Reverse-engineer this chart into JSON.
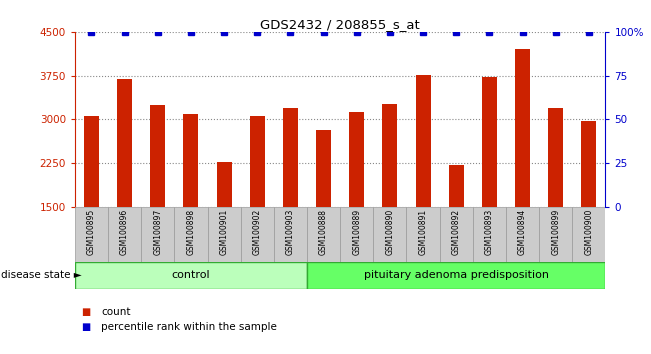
{
  "title": "GDS2432 / 208855_s_at",
  "samples": [
    "GSM100895",
    "GSM100896",
    "GSM100897",
    "GSM100898",
    "GSM100901",
    "GSM100902",
    "GSM100903",
    "GSM100888",
    "GSM100889",
    "GSM100890",
    "GSM100891",
    "GSM100892",
    "GSM100893",
    "GSM100894",
    "GSM100899",
    "GSM100900"
  ],
  "counts": [
    3060,
    3700,
    3250,
    3100,
    2270,
    3060,
    3200,
    2820,
    3130,
    3270,
    3760,
    2220,
    3720,
    4200,
    3200,
    2970
  ],
  "percentile_vals": [
    100,
    100,
    100,
    100,
    100,
    100,
    100,
    100,
    100,
    100,
    100,
    100,
    100,
    100,
    100,
    100
  ],
  "bar_color": "#cc2200",
  "percentile_color": "#0000cc",
  "ylim_left": [
    1500,
    4500
  ],
  "ylim_right": [
    0,
    100
  ],
  "yticks_left": [
    1500,
    2250,
    3000,
    3750,
    4500
  ],
  "yticks_right": [
    0,
    25,
    50,
    75,
    100
  ],
  "control_count": 7,
  "control_label": "control",
  "disease_label": "pituitary adenoma predisposition",
  "disease_state_label": "disease state",
  "legend_count_label": "count",
  "legend_percentile_label": "percentile rank within the sample",
  "bg_color": "#ffffff",
  "plot_bg_color": "#ffffff",
  "grid_color": "#888888",
  "left_axis_color": "#cc2200",
  "right_axis_color": "#0000cc",
  "control_fill": "#bbffbb",
  "disease_fill": "#66ff66",
  "label_box_color": "#cccccc"
}
